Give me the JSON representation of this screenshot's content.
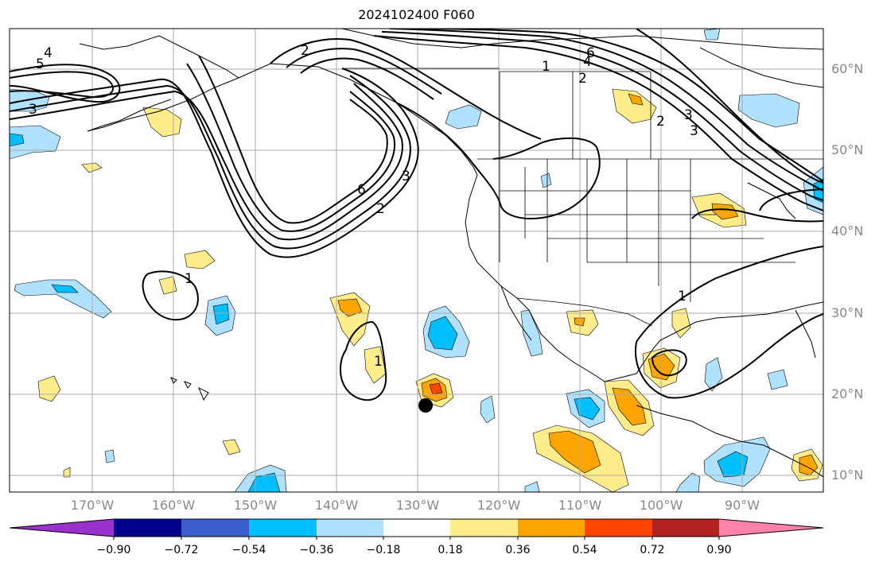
{
  "title": "2024102400 F060",
  "lat_labels": [
    "60°N",
    "50°N",
    "40°N",
    "30°N",
    "20°N",
    "10°N"
  ],
  "lon_labels": [
    "170°W",
    "160°W",
    "150°W",
    "140°W",
    "130°W",
    "120°W",
    "110°W",
    "100°W",
    "90°W"
  ],
  "contour_labels": [
    "4",
    "5",
    "3",
    "2",
    "3",
    "6",
    "2",
    "3",
    "1",
    "2",
    "4",
    "6",
    "3",
    "2",
    "1",
    "1",
    "1"
  ],
  "colorbar": {
    "ticks": [
      "−0.90",
      "−0.72",
      "−0.54",
      "−0.36",
      "−0.18",
      "0.18",
      "0.36",
      "0.54",
      "0.72",
      "0.90"
    ],
    "colors": [
      "#9932cc",
      "#00008b",
      "#3a5fcd",
      "#00bfff",
      "#b0e2ff",
      "#ffffff",
      "#ffec8b",
      "#ffa500",
      "#ff4500",
      "#b22222",
      "#ff82ab"
    ]
  },
  "map_colors": {
    "light_blue": "#b0e2ff",
    "blue": "#00bfff",
    "yellow": "#ffec8b",
    "orange": "#ffa500",
    "red": "#ff4500",
    "grid": "#a9a9a9"
  }
}
